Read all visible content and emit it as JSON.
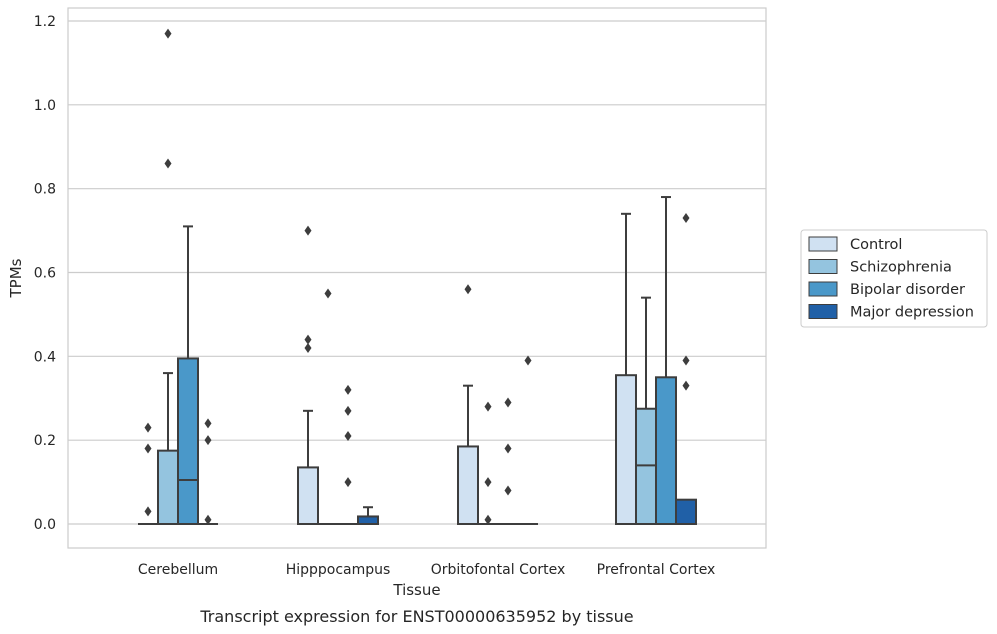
{
  "caption": "Transcript expression for ENST00000635952 by tissue",
  "chart_data": {
    "type": "box",
    "xlabel": "Tissue",
    "ylabel": "TPMs",
    "ylim": [
      -0.058,
      1.23
    ],
    "yticks": [
      0.0,
      0.2,
      0.4,
      0.6,
      0.8,
      1.0,
      1.2
    ],
    "ytick_labels": [
      "0.0",
      "0.2",
      "0.4",
      "0.6",
      "0.8",
      "1.0",
      "1.2"
    ],
    "grid": true,
    "legend_position": "right",
    "categories": [
      "Cerebellum",
      "Hipppocampus",
      "Orbitofontal Cortex",
      "Prefrontal Cortex"
    ],
    "series": [
      {
        "name": "Control",
        "color": "#d0e1f2",
        "boxes": [
          {
            "q1": 0,
            "median": 0,
            "q3": 0,
            "whisker_low": 0,
            "whisker_high": 0,
            "outliers": [
              0.03,
              0.18,
              0.23
            ]
          },
          {
            "q1": 0,
            "median": 0,
            "q3": 0.135,
            "whisker_low": 0,
            "whisker_high": 0.27,
            "outliers": [
              0.42,
              0.44,
              0.7
            ]
          },
          {
            "q1": 0,
            "median": 0,
            "q3": 0.185,
            "whisker_low": 0,
            "whisker_high": 0.33,
            "outliers": [
              0.56
            ]
          },
          {
            "q1": 0,
            "median": 0,
            "q3": 0.355,
            "whisker_low": 0,
            "whisker_high": 0.74,
            "outliers": []
          }
        ]
      },
      {
        "name": "Schizophrenia",
        "color": "#94c4df",
        "boxes": [
          {
            "q1": 0,
            "median": 0,
            "q3": 0.175,
            "whisker_low": 0,
            "whisker_high": 0.36,
            "outliers": [
              0.86,
              1.17
            ]
          },
          {
            "q1": 0,
            "median": 0,
            "q3": 0,
            "whisker_low": 0,
            "whisker_high": 0,
            "outliers": [
              0.55
            ]
          },
          {
            "q1": 0,
            "median": 0,
            "q3": 0,
            "whisker_low": 0,
            "whisker_high": 0,
            "outliers": [
              0.01,
              0.1,
              0.28
            ]
          },
          {
            "q1": 0,
            "median": 0.14,
            "q3": 0.275,
            "whisker_low": 0,
            "whisker_high": 0.54,
            "outliers": []
          }
        ]
      },
      {
        "name": "Bipolar disorder",
        "color": "#4a98c9",
        "boxes": [
          {
            "q1": 0,
            "median": 0.105,
            "q3": 0.395,
            "whisker_low": 0,
            "whisker_high": 0.71,
            "outliers": []
          },
          {
            "q1": 0,
            "median": 0,
            "q3": 0,
            "whisker_low": 0,
            "whisker_high": 0,
            "outliers": [
              0.1,
              0.21,
              0.27,
              0.32
            ]
          },
          {
            "q1": 0,
            "median": 0,
            "q3": 0,
            "whisker_low": 0,
            "whisker_high": 0,
            "outliers": [
              0.08,
              0.18,
              0.29
            ]
          },
          {
            "q1": 0,
            "median": 0,
            "q3": 0.35,
            "whisker_low": 0,
            "whisker_high": 0.78,
            "outliers": []
          }
        ]
      },
      {
        "name": "Major depression",
        "color": "#2060a7",
        "boxes": [
          {
            "q1": 0,
            "median": 0,
            "q3": 0,
            "whisker_low": 0,
            "whisker_high": 0,
            "outliers": [
              0.01,
              0.2,
              0.24
            ]
          },
          {
            "q1": 0,
            "median": 0,
            "q3": 0.018,
            "whisker_low": 0,
            "whisker_high": 0.04,
            "outliers": []
          },
          {
            "q1": 0,
            "median": 0,
            "q3": 0,
            "whisker_low": 0,
            "whisker_high": 0,
            "outliers": [
              0.39
            ]
          },
          {
            "q1": 0,
            "median": 0,
            "q3": 0.058,
            "whisker_low": 0,
            "whisker_high": 0.058,
            "outliers": [
              0.33,
              0.39,
              0.73
            ]
          }
        ]
      }
    ]
  }
}
